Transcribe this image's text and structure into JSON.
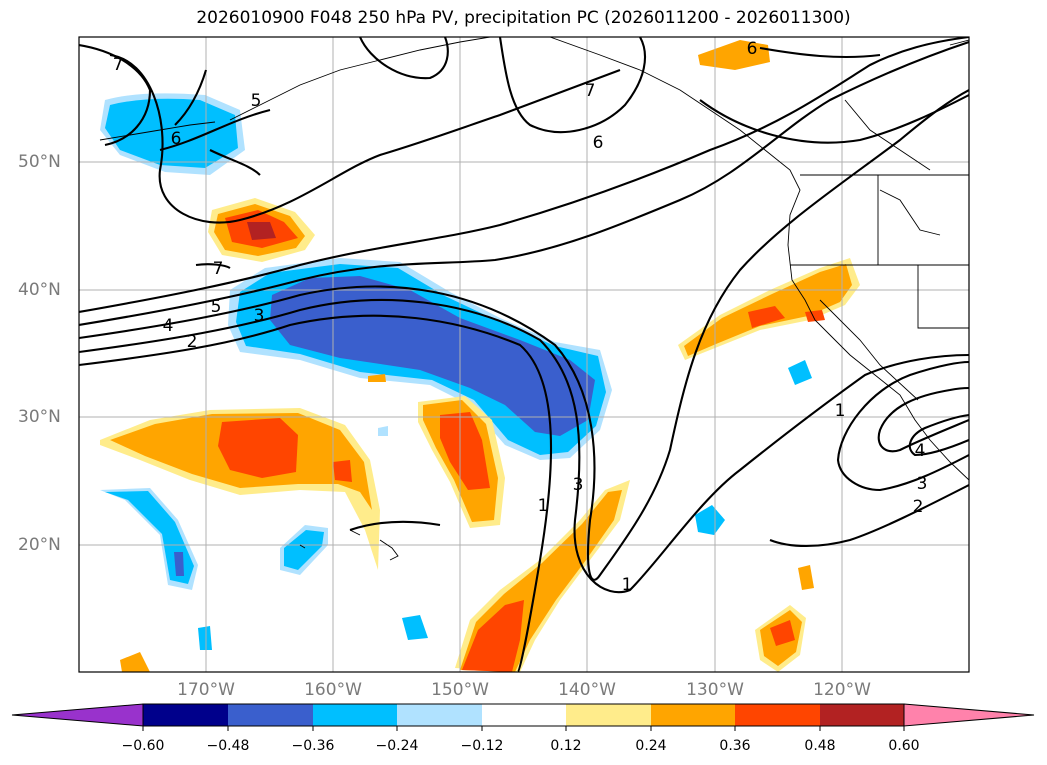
{
  "title": "2026010900 F048 250 hPa PV, precipitation PC (2026011200 - 2026011300)",
  "x_ticks": [
    "170°W",
    "160°W",
    "150°W",
    "140°W",
    "130°W",
    "120°W"
  ],
  "y_ticks": [
    "50°N",
    "40°N",
    "30°N",
    "20°N"
  ],
  "colorbar": {
    "labels": [
      "−0.60",
      "−0.48",
      "−0.36",
      "−0.24",
      "−0.12",
      "0.12",
      "0.24",
      "0.36",
      "0.48",
      "0.60"
    ],
    "colors": [
      "#9932cc",
      "#00008b",
      "#3a5fcd",
      "#00bfff",
      "#b0e2ff",
      "#ffffff",
      "#ffec8b",
      "#ffa500",
      "#ff4500",
      "#b22222",
      "#ff82ab"
    ]
  },
  "contour_labels": [
    {
      "text": "7"
    },
    {
      "text": "5"
    },
    {
      "text": "6"
    },
    {
      "text": "7"
    },
    {
      "text": "6"
    },
    {
      "text": "6"
    },
    {
      "text": "7"
    },
    {
      "text": "5"
    },
    {
      "text": "4"
    },
    {
      "text": "3"
    },
    {
      "text": "2"
    },
    {
      "text": "1"
    },
    {
      "text": "3"
    },
    {
      "text": "1"
    },
    {
      "text": "1"
    },
    {
      "text": "4"
    },
    {
      "text": "3"
    },
    {
      "text": "2"
    }
  ]
}
